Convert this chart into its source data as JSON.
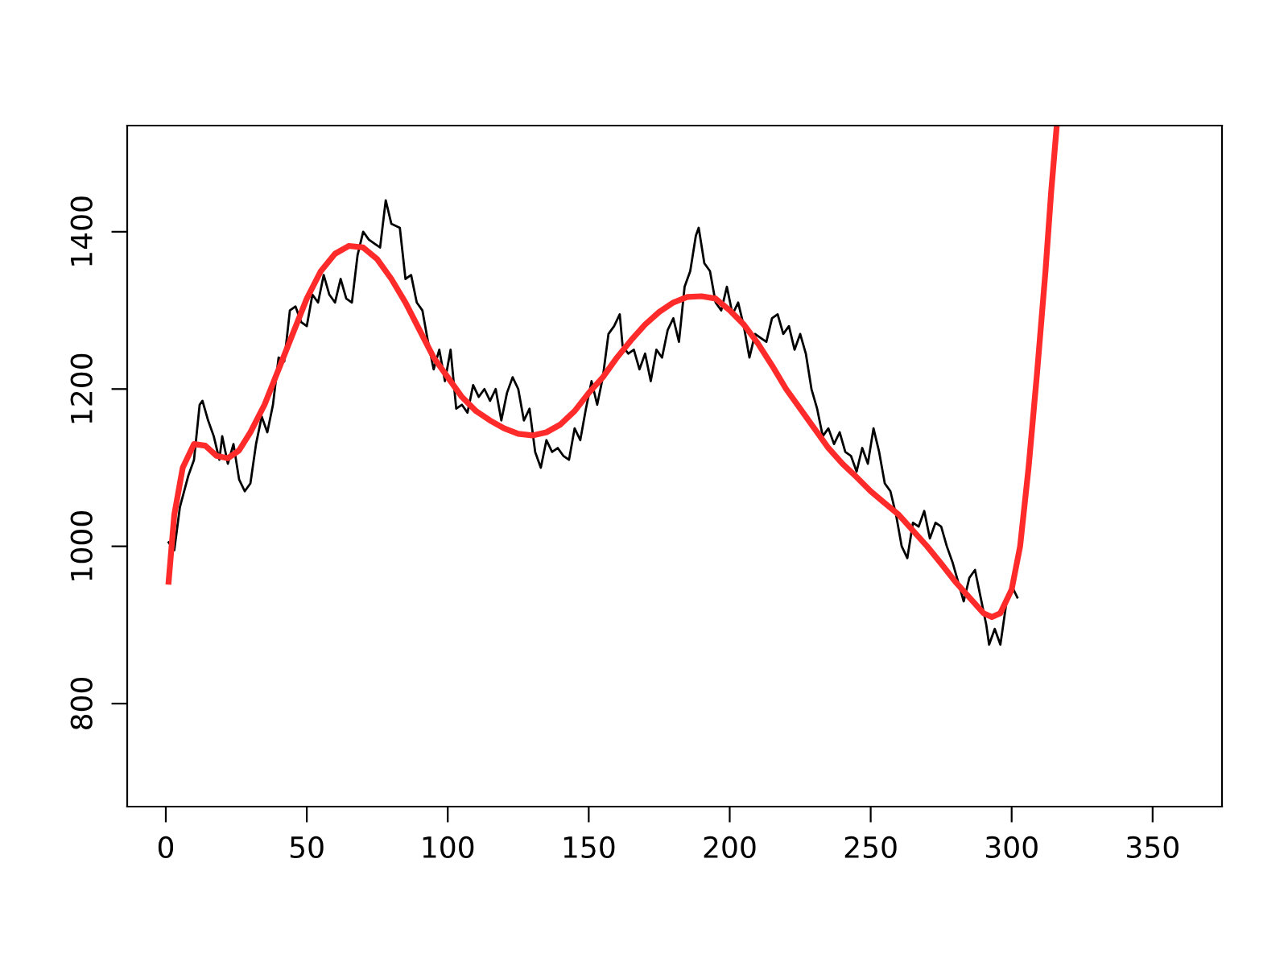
{
  "chart_data": {
    "type": "line",
    "xlim": [
      -13.7,
      374.6
    ],
    "ylim": [
      669,
      1535
    ],
    "xticks": [
      0,
      50,
      100,
      150,
      200,
      250,
      300,
      350
    ],
    "yticks": [
      800,
      1000,
      1200,
      1400
    ],
    "grid": false,
    "legend": false,
    "line_style": "solid",
    "marker": "none",
    "series": [
      {
        "color": "#000000",
        "x": [
          1,
          3,
          5,
          8,
          10,
          12,
          13,
          15,
          17,
          19,
          20,
          22,
          24,
          26,
          28,
          30,
          32,
          34,
          36,
          38,
          40,
          42,
          44,
          46,
          48,
          50,
          52,
          54,
          56,
          58,
          60,
          62,
          64,
          66,
          68,
          70,
          72,
          74,
          76,
          78,
          80,
          83,
          85,
          87,
          89,
          91,
          93,
          95,
          97,
          99,
          101,
          103,
          105,
          107,
          109,
          111,
          113,
          115,
          117,
          119,
          121,
          123,
          125,
          127,
          129,
          131,
          133,
          135,
          137,
          139,
          141,
          143,
          145,
          147,
          149,
          151,
          153,
          155,
          157,
          159,
          161,
          162,
          164,
          166,
          168,
          170,
          172,
          174,
          176,
          178,
          180,
          182,
          184,
          186,
          188,
          189,
          191,
          193,
          195,
          197,
          199,
          201,
          203,
          205,
          207,
          209,
          211,
          213,
          215,
          217,
          219,
          221,
          223,
          225,
          227,
          229,
          231,
          233,
          235,
          237,
          239,
          241,
          243,
          245,
          247,
          249,
          251,
          253,
          255,
          257,
          259,
          261,
          263,
          265,
          267,
          269,
          271,
          273,
          275,
          277,
          279,
          281,
          283,
          285,
          287,
          289,
          291,
          292,
          294,
          296,
          298,
          300,
          302
        ],
        "values": [
          1005,
          995,
          1050,
          1090,
          1110,
          1180,
          1185,
          1160,
          1140,
          1110,
          1140,
          1105,
          1130,
          1085,
          1070,
          1080,
          1130,
          1165,
          1145,
          1180,
          1240,
          1235,
          1300,
          1305,
          1285,
          1280,
          1320,
          1310,
          1345,
          1320,
          1310,
          1340,
          1315,
          1310,
          1370,
          1400,
          1390,
          1385,
          1380,
          1440,
          1410,
          1405,
          1340,
          1345,
          1310,
          1300,
          1260,
          1225,
          1250,
          1210,
          1250,
          1175,
          1180,
          1170,
          1205,
          1190,
          1200,
          1185,
          1200,
          1160,
          1195,
          1215,
          1200,
          1160,
          1175,
          1120,
          1100,
          1135,
          1120,
          1125,
          1115,
          1110,
          1150,
          1135,
          1175,
          1210,
          1180,
          1215,
          1270,
          1280,
          1295,
          1255,
          1245,
          1250,
          1225,
          1245,
          1210,
          1250,
          1240,
          1275,
          1290,
          1260,
          1330,
          1350,
          1395,
          1405,
          1360,
          1350,
          1310,
          1300,
          1330,
          1295,
          1310,
          1280,
          1240,
          1270,
          1265,
          1260,
          1290,
          1295,
          1270,
          1280,
          1250,
          1270,
          1245,
          1200,
          1175,
          1140,
          1150,
          1130,
          1145,
          1120,
          1115,
          1095,
          1125,
          1105,
          1150,
          1120,
          1080,
          1070,
          1040,
          1000,
          985,
          1030,
          1025,
          1045,
          1010,
          1030,
          1025,
          1000,
          980,
          955,
          930,
          960,
          970,
          935,
          900,
          875,
          895,
          875,
          925,
          950,
          935
        ]
      },
      {
        "color": "#ff2a2a",
        "x": [
          1,
          3,
          6,
          10,
          14,
          18,
          22,
          26,
          30,
          35,
          40,
          45,
          50,
          55,
          60,
          65,
          70,
          75,
          80,
          85,
          90,
          95,
          100,
          105,
          110,
          115,
          120,
          125,
          130,
          135,
          140,
          145,
          150,
          155,
          160,
          165,
          170,
          175,
          180,
          185,
          190,
          195,
          200,
          205,
          210,
          215,
          220,
          225,
          230,
          235,
          240,
          245,
          250,
          255,
          260,
          265,
          270,
          275,
          280,
          285,
          290,
          293,
          296,
          300,
          303,
          306,
          309,
          312,
          314,
          316
        ],
        "values": [
          955,
          1040,
          1100,
          1130,
          1128,
          1115,
          1112,
          1122,
          1145,
          1180,
          1225,
          1270,
          1315,
          1350,
          1372,
          1382,
          1380,
          1365,
          1340,
          1310,
          1275,
          1240,
          1215,
          1190,
          1172,
          1160,
          1150,
          1143,
          1141,
          1145,
          1155,
          1172,
          1195,
          1215,
          1240,
          1262,
          1282,
          1298,
          1310,
          1317,
          1318,
          1315,
          1300,
          1282,
          1258,
          1230,
          1200,
          1175,
          1150,
          1125,
          1105,
          1088,
          1070,
          1055,
          1040,
          1020,
          1000,
          978,
          955,
          935,
          915,
          910,
          915,
          945,
          1000,
          1100,
          1220,
          1350,
          1450,
          1535
        ]
      }
    ]
  }
}
